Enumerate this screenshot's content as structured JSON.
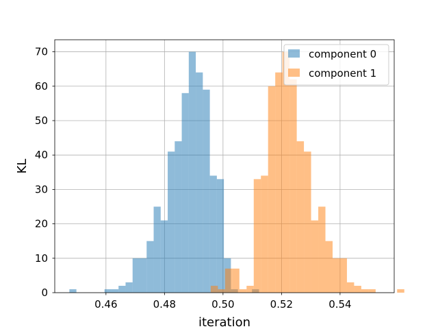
{
  "chart_data": {
    "type": "bar",
    "xlabel": "iteration",
    "ylabel": "KL",
    "xlim": [
      0.4425,
      0.5585
    ],
    "ylim": [
      0,
      73.5
    ],
    "grid": true,
    "legend_position": "top-right",
    "xticks": [
      {
        "value": 0.46,
        "label": "0.46"
      },
      {
        "value": 0.48,
        "label": "0.48"
      },
      {
        "value": 0.5,
        "label": "0.50"
      },
      {
        "value": 0.52,
        "label": "0.52"
      },
      {
        "value": 0.54,
        "label": "0.54"
      }
    ],
    "yticks": [
      {
        "value": 0,
        "label": "0"
      },
      {
        "value": 10,
        "label": "10"
      },
      {
        "value": 20,
        "label": "20"
      },
      {
        "value": 30,
        "label": "30"
      },
      {
        "value": 40,
        "label": "40"
      },
      {
        "value": 50,
        "label": "50"
      },
      {
        "value": 60,
        "label": "60"
      },
      {
        "value": 70,
        "label": "70"
      }
    ],
    "series": [
      {
        "name": "component 0",
        "color": "#1f77b4",
        "opacity": 0.5,
        "bin_start": 0.4475,
        "bin_width": 0.0024,
        "counts": [
          1,
          0,
          0,
          0,
          0,
          1,
          1,
          2,
          3,
          10,
          10,
          15,
          25,
          21,
          41,
          44,
          58,
          70,
          64,
          59,
          34,
          33,
          10,
          1,
          0,
          0,
          1
        ]
      },
      {
        "name": "component 1",
        "color": "#ff7f0e",
        "opacity": 0.5,
        "bin_start": 0.4958,
        "bin_width": 0.00245,
        "counts": [
          2,
          1,
          7,
          7,
          1,
          2,
          33,
          34,
          60,
          64,
          70,
          62,
          44,
          41,
          21,
          25,
          15,
          10,
          10,
          3,
          2,
          1,
          1,
          0,
          0,
          0,
          1
        ]
      }
    ]
  }
}
